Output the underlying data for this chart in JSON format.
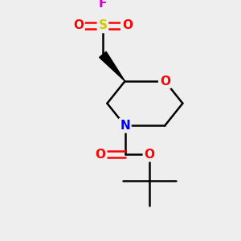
{
  "bg_color": "#eeeeee",
  "atom_colors": {
    "C": "#000000",
    "O": "#ff0000",
    "N": "#0000ff",
    "S": "#cccc00",
    "F": "#cc00cc"
  },
  "bond_color": "#000000",
  "bond_width": 1.8,
  "figsize": [
    3.0,
    3.0
  ],
  "dpi": 100,
  "xlim": [
    0,
    10
  ],
  "ylim": [
    0,
    10
  ]
}
